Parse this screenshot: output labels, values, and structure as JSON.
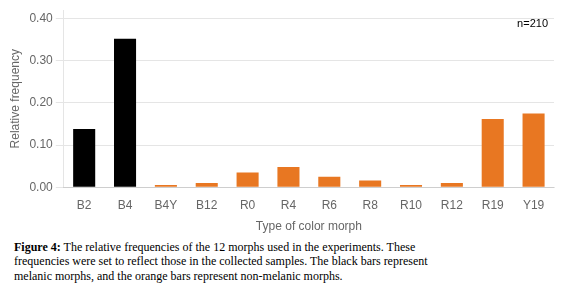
{
  "chart_data": {
    "type": "bar",
    "categories": [
      "B2",
      "B4",
      "B4Y",
      "B12",
      "R0",
      "R4",
      "R6",
      "R8",
      "R10",
      "R12",
      "R19",
      "Y19"
    ],
    "values": [
      0.138,
      0.352,
      0.005,
      0.01,
      0.035,
      0.048,
      0.025,
      0.016,
      0.005,
      0.01,
      0.162,
      0.175
    ],
    "colors": [
      "#000000",
      "#000000",
      "#E87722",
      "#E87722",
      "#E87722",
      "#E87722",
      "#E87722",
      "#E87722",
      "#E87722",
      "#E87722",
      "#E87722",
      "#E87722"
    ],
    "ylabel": "Relative frequency",
    "xlabel": "Type of color morph",
    "ylim": [
      0,
      0.42
    ],
    "yticks": [
      {
        "value": 0.0,
        "label": "0.00"
      },
      {
        "value": 0.1,
        "label": "0.10"
      },
      {
        "value": 0.2,
        "label": "0.20"
      },
      {
        "value": 0.3,
        "label": "0.30"
      },
      {
        "value": 0.4,
        "label": "0.40"
      }
    ],
    "grid": true,
    "annotation": "n=210",
    "caption_title": "Figure 4:",
    "caption": "The relative frequencies of the 12 morphs used in the experiments. These\nfrequencies were set to reflect those in the collected samples. The black bars represent\nmelanic morphs, and the orange bars represent non-melanic morphs."
  }
}
